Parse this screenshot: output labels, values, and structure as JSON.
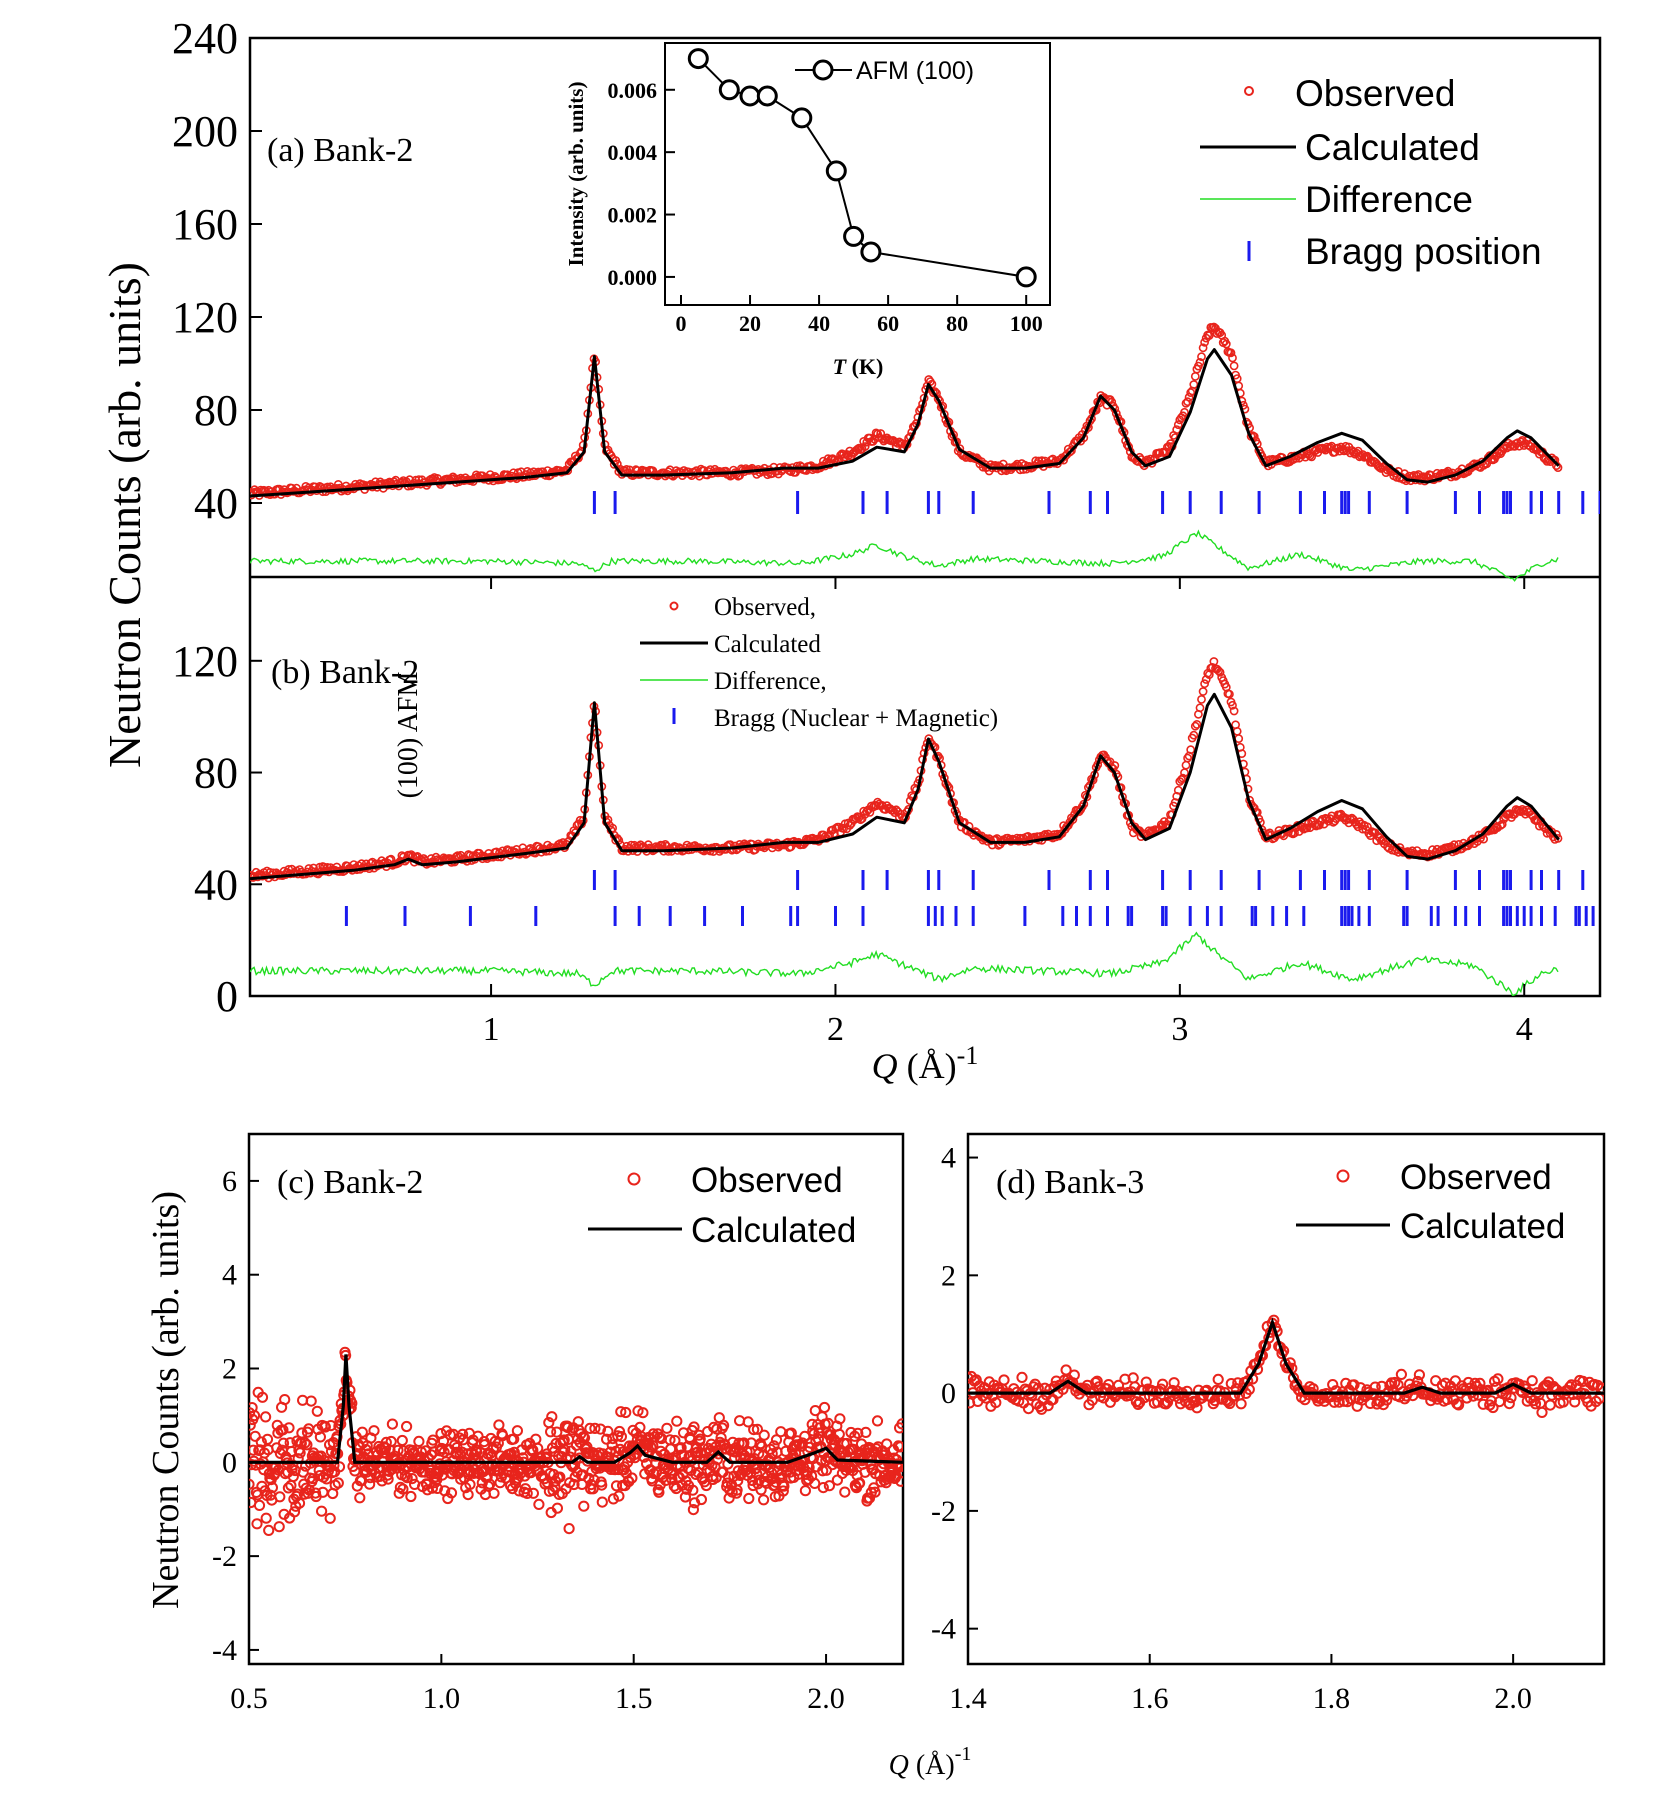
{
  "figure": {
    "ylabel_top": "Neutron Counts (arb. units)",
    "ylabel_bottom": "Neutron Counts (arb. units)",
    "xlabel_top": "Q (Å)-1",
    "xlabel_bottom": "Q (Å)-1",
    "annotation_afm": "(100) AFM"
  },
  "chart_data": [
    {
      "id": "a",
      "type": "line",
      "panel_label": "(a) Bank-2",
      "xlabel": "Q (Å)-1",
      "ylabel": "Neutron Counts (arb. units)",
      "xlim": [
        0.3,
        4.22
      ],
      "ylim": [
        0,
        240
      ],
      "yticks": [
        40,
        80,
        120,
        160,
        200,
        240
      ],
      "legend": [
        "Observed",
        "Calculated",
        "Difference",
        "Bragg position"
      ],
      "legend_position": "top-right",
      "colors": {
        "observed": "#e8241c",
        "calculated": "#000000",
        "difference": "#22dd22",
        "bragg": "#1a1aee"
      },
      "calculated": {
        "x": [
          0.3,
          0.6,
          0.9,
          1.1,
          1.22,
          1.27,
          1.3,
          1.33,
          1.38,
          1.5,
          1.7,
          1.85,
          1.95,
          2.05,
          2.12,
          2.16,
          2.2,
          2.24,
          2.27,
          2.3,
          2.36,
          2.45,
          2.55,
          2.65,
          2.72,
          2.77,
          2.81,
          2.86,
          2.9,
          2.97,
          3.03,
          3.08,
          3.1,
          3.15,
          3.2,
          3.25,
          3.32,
          3.4,
          3.47,
          3.53,
          3.6,
          3.66,
          3.72,
          3.8,
          3.88,
          3.95,
          3.98,
          4.02,
          4.06,
          4.1
        ],
        "y": [
          43,
          46,
          49,
          51,
          53,
          62,
          103,
          62,
          52,
          52,
          53,
          55,
          55,
          58,
          64,
          63,
          62,
          74,
          91,
          84,
          63,
          55,
          55,
          57,
          68,
          86,
          80,
          62,
          56,
          60,
          79,
          102,
          106,
          95,
          70,
          56,
          60,
          66,
          70,
          67,
          57,
          50,
          49,
          52,
          58,
          68,
          71,
          68,
          62,
          56
        ]
      },
      "observed": {
        "x": [
          0.3,
          0.6,
          0.9,
          1.1,
          1.22,
          1.27,
          1.3,
          1.33,
          1.38,
          1.5,
          1.7,
          1.85,
          1.95,
          2.05,
          2.12,
          2.16,
          2.2,
          2.24,
          2.27,
          2.3,
          2.36,
          2.45,
          2.55,
          2.65,
          2.72,
          2.77,
          2.81,
          2.86,
          2.9,
          2.97,
          3.03,
          3.08,
          3.1,
          3.15,
          3.2,
          3.25,
          3.32,
          3.4,
          3.47,
          3.53,
          3.6,
          3.66,
          3.72,
          3.8,
          3.88,
          3.95,
          3.98,
          4.02,
          4.06,
          4.1
        ],
        "y": [
          44,
          47,
          50,
          52,
          54,
          64,
          104,
          64,
          53,
          53,
          53,
          54,
          56,
          62,
          69,
          67,
          64,
          76,
          92,
          85,
          62,
          55,
          56,
          58,
          69,
          85,
          82,
          60,
          57,
          63,
          86,
          112,
          116,
          104,
          72,
          57,
          59,
          62,
          64,
          61,
          54,
          51,
          51,
          53,
          57,
          64,
          66,
          65,
          60,
          56
        ]
      },
      "difference": {
        "x": [
          0.3,
          1.0,
          1.25,
          1.3,
          1.35,
          1.6,
          1.9,
          2.05,
          2.12,
          2.2,
          2.3,
          2.4,
          2.6,
          2.8,
          2.95,
          3.05,
          3.1,
          3.2,
          3.35,
          3.5,
          3.7,
          3.85,
          3.97,
          4.05,
          4.1
        ],
        "y": [
          15,
          15,
          14,
          11,
          15,
          15,
          14,
          18,
          22,
          17,
          13,
          16,
          15,
          14,
          17,
          27,
          22,
          12,
          18,
          11,
          15,
          15,
          7,
          14,
          16
        ]
      },
      "bragg": [
        1.3,
        1.36,
        1.89,
        2.08,
        2.15,
        2.27,
        2.3,
        2.4,
        2.62,
        2.74,
        2.79,
        2.95,
        3.03,
        3.12,
        3.23,
        3.35,
        3.42,
        3.47,
        3.48,
        3.49,
        3.55,
        3.66,
        3.8,
        3.87,
        3.94,
        3.95,
        3.96,
        4.02,
        4.05,
        4.1,
        4.17,
        4.22
      ]
    },
    {
      "id": "inset",
      "type": "line",
      "xlabel": "T (K)",
      "ylabel": "Intensity (arb. units)",
      "xlim": [
        0,
        104
      ],
      "ylim": [
        -0.0009,
        0.0075
      ],
      "xticks": [
        0,
        20,
        40,
        60,
        80,
        100
      ],
      "yticks": [
        0.0,
        0.002,
        0.004,
        0.006
      ],
      "ytick_labels": [
        "0.000",
        "0.002",
        "0.004",
        "0.006"
      ],
      "legend": [
        "AFM (100)"
      ],
      "legend_position": "top-right",
      "x": [
        5,
        14,
        20,
        25,
        35,
        45,
        50,
        55,
        100
      ],
      "y": [
        0.007,
        0.006,
        0.0058,
        0.0058,
        0.0051,
        0.0034,
        0.0013,
        0.0008,
        0.0
      ]
    },
    {
      "id": "b",
      "type": "line",
      "panel_label": "(b) Bank-2",
      "xlabel": "Q (Å)-1",
      "ylabel": "Neutron Counts (arb. units)",
      "xlim": [
        0.3,
        4.22
      ],
      "ylim": [
        0,
        150
      ],
      "yticks": [
        0,
        40,
        80,
        120
      ],
      "xticks": [
        1,
        2,
        3,
        4
      ],
      "legend": [
        "Observed,",
        "Calculated",
        "Difference,",
        "Bragg (Nuclear + Magnetic)"
      ],
      "legend_position": "top-center",
      "calculated": {
        "x": [
          0.3,
          0.6,
          0.72,
          0.76,
          0.8,
          0.9,
          1.1,
          1.22,
          1.27,
          1.3,
          1.33,
          1.38,
          1.5,
          1.7,
          1.85,
          1.95,
          2.05,
          2.12,
          2.16,
          2.2,
          2.24,
          2.27,
          2.3,
          2.36,
          2.45,
          2.55,
          2.65,
          2.72,
          2.77,
          2.81,
          2.86,
          2.9,
          2.97,
          3.03,
          3.08,
          3.1,
          3.15,
          3.2,
          3.25,
          3.32,
          3.4,
          3.47,
          3.53,
          3.6,
          3.66,
          3.72,
          3.8,
          3.88,
          3.95,
          3.98,
          4.02,
          4.06,
          4.1
        ],
        "y": [
          42,
          45,
          47,
          49,
          47,
          48,
          51,
          53,
          62,
          105,
          62,
          52,
          52,
          53,
          55,
          55,
          58,
          64,
          63,
          62,
          74,
          92,
          84,
          62,
          55,
          55,
          57,
          68,
          86,
          80,
          62,
          56,
          60,
          80,
          104,
          108,
          96,
          70,
          56,
          60,
          66,
          70,
          67,
          57,
          50,
          49,
          52,
          58,
          68,
          71,
          68,
          62,
          56
        ]
      },
      "observed": {
        "x": [
          0.3,
          0.6,
          0.72,
          0.76,
          0.8,
          0.9,
          1.1,
          1.22,
          1.27,
          1.3,
          1.33,
          1.38,
          1.5,
          1.7,
          1.85,
          1.95,
          2.05,
          2.12,
          2.16,
          2.2,
          2.24,
          2.27,
          2.3,
          2.36,
          2.45,
          2.55,
          2.65,
          2.72,
          2.77,
          2.81,
          2.86,
          2.9,
          2.97,
          3.03,
          3.08,
          3.1,
          3.15,
          3.2,
          3.25,
          3.32,
          3.4,
          3.47,
          3.53,
          3.6,
          3.66,
          3.72,
          3.8,
          3.88,
          3.95,
          3.98,
          4.02,
          4.06,
          4.1
        ],
        "y": [
          43,
          46,
          48,
          50,
          48,
          49,
          52,
          54,
          64,
          106,
          64,
          53,
          53,
          53,
          54,
          56,
          62,
          69,
          67,
          64,
          76,
          93,
          85,
          62,
          55,
          56,
          58,
          69,
          86,
          82,
          60,
          57,
          63,
          88,
          115,
          119,
          106,
          72,
          57,
          59,
          62,
          64,
          61,
          54,
          51,
          51,
          53,
          57,
          64,
          66,
          65,
          60,
          56
        ]
      },
      "difference": {
        "x": [
          0.3,
          1.0,
          1.25,
          1.3,
          1.35,
          1.6,
          1.9,
          2.05,
          2.12,
          2.2,
          2.3,
          2.4,
          2.6,
          2.8,
          2.95,
          3.05,
          3.1,
          3.2,
          3.35,
          3.5,
          3.7,
          3.85,
          3.97,
          4.05,
          4.1
        ],
        "y": [
          9,
          9,
          8,
          4,
          9,
          9,
          8,
          12,
          15,
          11,
          6,
          10,
          9,
          8,
          12,
          22,
          16,
          6,
          12,
          6,
          13,
          11,
          1,
          8,
          10
        ]
      },
      "bragg_nuclear": [
        1.3,
        1.36,
        1.89,
        2.08,
        2.15,
        2.27,
        2.3,
        2.4,
        2.62,
        2.74,
        2.79,
        2.95,
        3.03,
        3.12,
        3.23,
        3.35,
        3.42,
        3.47,
        3.48,
        3.49,
        3.55,
        3.66,
        3.8,
        3.87,
        3.94,
        3.95,
        3.96,
        4.02,
        4.05,
        4.1,
        4.17
      ],
      "bragg_magnetic": [
        0.58,
        0.75,
        0.94,
        1.13,
        1.36,
        1.43,
        1.52,
        1.62,
        1.73,
        1.87,
        1.89,
        2.0,
        2.08,
        2.27,
        2.29,
        2.31,
        2.35,
        2.4,
        2.55,
        2.66,
        2.7,
        2.74,
        2.79,
        2.85,
        2.86,
        2.95,
        2.96,
        3.03,
        3.08,
        3.12,
        3.21,
        3.22,
        3.27,
        3.31,
        3.36,
        3.47,
        3.48,
        3.49,
        3.5,
        3.52,
        3.55,
        3.65,
        3.66,
        3.73,
        3.75,
        3.8,
        3.83,
        3.87,
        3.94,
        3.95,
        3.96,
        3.98,
        4.0,
        4.02,
        4.05,
        4.09,
        4.15,
        4.16,
        4.18,
        4.2
      ]
    },
    {
      "id": "c",
      "type": "scatter",
      "panel_label": "(c) Bank-2",
      "xlabel": "Q (Å)-1",
      "ylabel": "Neutron Counts (arb. units)",
      "xlim": [
        0.5,
        2.2
      ],
      "ylim": [
        -4.3,
        7.0
      ],
      "xticks": [
        0.5,
        1.0,
        1.5,
        2.0
      ],
      "xtick_labels": [
        "0.5",
        "1.0",
        "1.5",
        "2.0"
      ],
      "yticks": [
        -4,
        -2,
        0,
        2,
        4,
        6
      ],
      "legend": [
        "Observed",
        "Calculated"
      ],
      "legend_position": "top-right",
      "calculated": {
        "x": [
          0.5,
          0.73,
          0.745,
          0.752,
          0.76,
          0.775,
          1.2,
          1.34,
          1.36,
          1.38,
          1.45,
          1.49,
          1.51,
          1.53,
          1.6,
          1.69,
          1.72,
          1.75,
          1.9,
          1.97,
          2.0,
          2.03,
          2.2
        ],
        "y": [
          0,
          0,
          1.2,
          2.3,
          1.2,
          0,
          0,
          0,
          0.12,
          0,
          0,
          0.2,
          0.35,
          0.15,
          0,
          0,
          0.22,
          0,
          0,
          0.2,
          0.3,
          0.05,
          0
        ]
      },
      "observed_envelope": {
        "x": [
          0.5,
          0.6,
          0.7,
          0.75,
          0.8,
          1.0,
          1.25,
          1.3,
          1.4,
          1.5,
          1.7,
          2.0,
          2.2
        ],
        "amplitude": [
          2.2,
          2.2,
          1.6,
          0.8,
          1.0,
          0.9,
          1.0,
          1.9,
          1.2,
          1.2,
          1.2,
          1.1,
          1.1
        ]
      }
    },
    {
      "id": "d",
      "type": "scatter",
      "panel_label": "(d) Bank-3",
      "xlabel": "Q (Å)-1",
      "ylabel": "",
      "xlim": [
        1.4,
        2.1
      ],
      "ylim": [
        -4.6,
        4.4
      ],
      "xticks": [
        1.4,
        1.6,
        1.8,
        2.0
      ],
      "xtick_labels": [
        "1.4",
        "1.6",
        "1.8",
        "2.0"
      ],
      "yticks": [
        -4,
        -2,
        0,
        2,
        4
      ],
      "legend": [
        "Observed",
        "Calculated"
      ],
      "legend_position": "top-right",
      "calculated": {
        "x": [
          1.4,
          1.49,
          1.51,
          1.53,
          1.7,
          1.72,
          1.735,
          1.75,
          1.77,
          1.88,
          1.9,
          1.92,
          1.98,
          2.0,
          2.02,
          2.1
        ],
        "y": [
          0,
          0,
          0.2,
          0,
          0,
          0.5,
          1.2,
          0.5,
          0,
          0,
          0.1,
          0,
          0,
          0.15,
          0,
          0
        ]
      },
      "observed_envelope": {
        "x": [
          1.4,
          1.5,
          1.7,
          1.74,
          1.8,
          1.9,
          2.0,
          2.1
        ],
        "amplitude": [
          0.4,
          0.35,
          0.3,
          0.2,
          0.3,
          0.4,
          0.4,
          0.4
        ]
      }
    }
  ]
}
